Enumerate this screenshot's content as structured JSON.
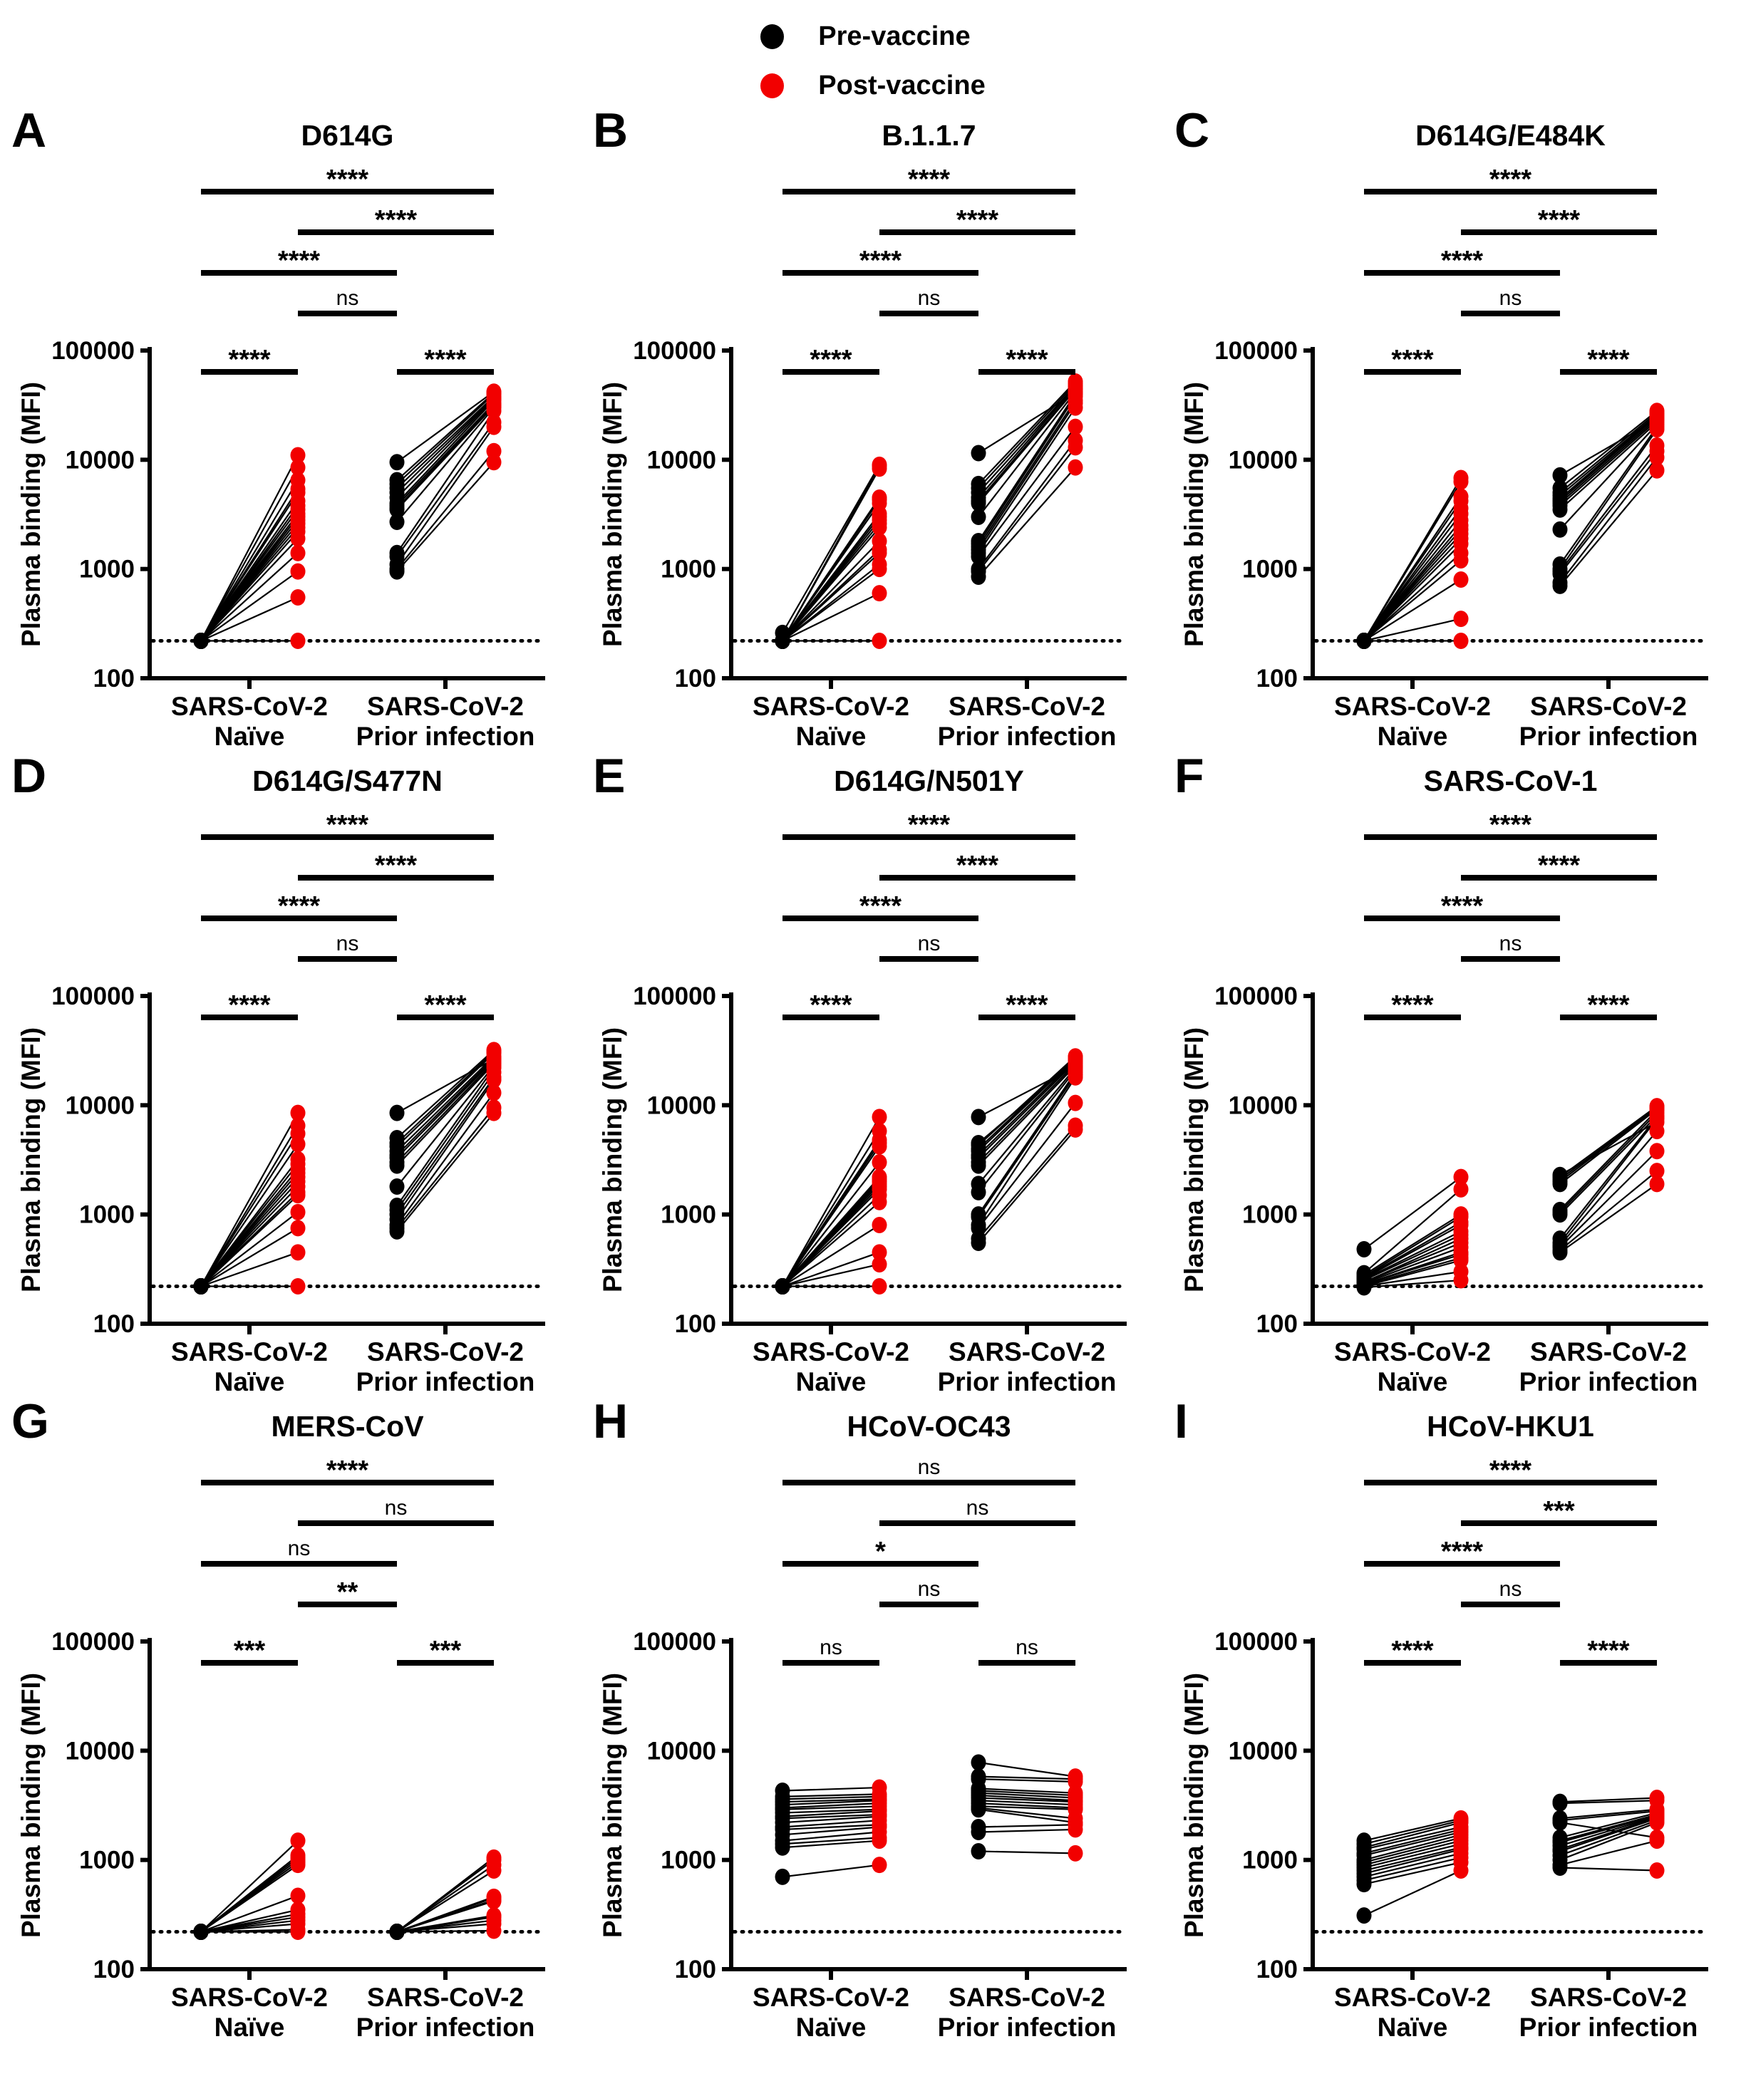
{
  "legend": {
    "items": [
      {
        "label": "Pre-vaccine",
        "color": "#000000"
      },
      {
        "label": "Post-vaccine",
        "color": "#f20000"
      }
    ]
  },
  "axes": {
    "ylabel": "Plasma binding (MFI)",
    "yticks": [
      "100",
      "1000",
      "10000",
      "100000"
    ],
    "ylim": [
      100,
      100000
    ],
    "yscale": "log",
    "baseline": 220,
    "x_groups": [
      {
        "line1": "SARS-CoV-2",
        "line2": "Naïve"
      },
      {
        "line1": "SARS-CoV-2",
        "line2": "Prior infection"
      }
    ]
  },
  "chart_data": [
    {
      "panel": "A",
      "title": "D614G",
      "type": "scatter",
      "series": {
        "naive_pre": [
          220,
          220,
          220,
          220,
          220,
          220,
          220,
          220,
          220,
          220,
          220,
          220,
          220,
          220,
          220,
          220,
          220,
          220,
          220
        ],
        "naive_post": [
          220,
          550,
          950,
          1400,
          1900,
          2200,
          2400,
          2600,
          2800,
          3000,
          3200,
          3500,
          3800,
          4200,
          5000,
          5400,
          6500,
          8500,
          11000
        ],
        "prior_pre": [
          950,
          1000,
          1100,
          1300,
          1400,
          2700,
          3500,
          3600,
          3800,
          4000,
          4500,
          5000,
          5500,
          6000,
          6500,
          9500
        ],
        "prior_post": [
          9500,
          12000,
          20000,
          22000,
          28000,
          30000,
          31000,
          32000,
          33000,
          35000,
          36000,
          37000,
          38000,
          40000,
          41000,
          42000
        ]
      },
      "significance": [
        {
          "a": "naive_pre",
          "b": "naive_post",
          "label": "****",
          "level": 0
        },
        {
          "a": "prior_pre",
          "b": "prior_post",
          "label": "****",
          "level": 0
        },
        {
          "a": "naive_post",
          "b": "prior_pre",
          "label": "ns",
          "level": 1
        },
        {
          "a": "naive_pre",
          "b": "prior_pre",
          "label": "****",
          "level": 2
        },
        {
          "a": "naive_post",
          "b": "prior_post",
          "label": "****",
          "level": 3
        },
        {
          "a": "naive_pre",
          "b": "prior_post",
          "label": "****",
          "level": 4
        }
      ]
    },
    {
      "panel": "B",
      "title": "B.1.1.7",
      "type": "scatter",
      "series": {
        "naive_pre": [
          220,
          220,
          220,
          220,
          220,
          220,
          220,
          220,
          220,
          220,
          220,
          220,
          220,
          220,
          220,
          220,
          220,
          260
        ],
        "naive_post": [
          220,
          600,
          1000,
          1100,
          1400,
          1500,
          1800,
          2400,
          2600,
          2800,
          3000,
          3200,
          4000,
          4300,
          4500,
          8300,
          8800,
          9000
        ],
        "prior_pre": [
          850,
          950,
          1000,
          1300,
          1400,
          1500,
          1600,
          1700,
          1800,
          3000,
          4000,
          4200,
          4500,
          5000,
          5500,
          6000,
          11500
        ],
        "prior_post": [
          8500,
          13000,
          15000,
          20000,
          30000,
          33000,
          35000,
          38000,
          40000,
          42000,
          44000,
          45000,
          47000,
          48000,
          50000,
          52000,
          41000
        ]
      },
      "significance": [
        {
          "a": "naive_pre",
          "b": "naive_post",
          "label": "****",
          "level": 0
        },
        {
          "a": "prior_pre",
          "b": "prior_post",
          "label": "****",
          "level": 0
        },
        {
          "a": "naive_post",
          "b": "prior_pre",
          "label": "ns",
          "level": 1
        },
        {
          "a": "naive_pre",
          "b": "prior_pre",
          "label": "****",
          "level": 2
        },
        {
          "a": "naive_post",
          "b": "prior_post",
          "label": "****",
          "level": 3
        },
        {
          "a": "naive_pre",
          "b": "prior_post",
          "label": "****",
          "level": 4
        }
      ]
    },
    {
      "panel": "C",
      "title": "D614G/E484K",
      "type": "scatter",
      "series": {
        "naive_pre": [
          220,
          220,
          220,
          220,
          220,
          220,
          220,
          220,
          220,
          220,
          220,
          220,
          220,
          220,
          220,
          220,
          220
        ],
        "naive_post": [
          220,
          350,
          800,
          1200,
          1400,
          1700,
          1900,
          2100,
          2300,
          2500,
          2800,
          3200,
          3600,
          4200,
          4600,
          6300,
          6800
        ],
        "prior_pre": [
          700,
          750,
          900,
          950,
          1000,
          1100,
          2300,
          3500,
          3800,
          4000,
          4200,
          4400,
          4700,
          5000,
          5500,
          7200
        ],
        "prior_post": [
          8000,
          10500,
          12000,
          13500,
          19000,
          20000,
          21000,
          22000,
          23000,
          24000,
          25000,
          25500,
          26000,
          27000,
          28000,
          23500
        ]
      },
      "significance": [
        {
          "a": "naive_pre",
          "b": "naive_post",
          "label": "****",
          "level": 0
        },
        {
          "a": "prior_pre",
          "b": "prior_post",
          "label": "****",
          "level": 0
        },
        {
          "a": "naive_post",
          "b": "prior_pre",
          "label": "ns",
          "level": 1
        },
        {
          "a": "naive_pre",
          "b": "prior_pre",
          "label": "****",
          "level": 2
        },
        {
          "a": "naive_post",
          "b": "prior_post",
          "label": "****",
          "level": 3
        },
        {
          "a": "naive_pre",
          "b": "prior_post",
          "label": "****",
          "level": 4
        }
      ]
    },
    {
      "panel": "D",
      "title": "D614G/S477N",
      "type": "scatter",
      "series": {
        "naive_pre": [
          220,
          220,
          220,
          220,
          220,
          220,
          220,
          220,
          220,
          220,
          220,
          220,
          220,
          220,
          220,
          220,
          220
        ],
        "naive_post": [
          220,
          450,
          750,
          1050,
          1500,
          1600,
          1800,
          2000,
          2200,
          2400,
          2600,
          2900,
          3200,
          4400,
          5500,
          6500,
          8500
        ],
        "prior_pre": [
          700,
          750,
          800,
          900,
          1000,
          1100,
          1200,
          1800,
          2800,
          3000,
          3300,
          3500,
          3800,
          4200,
          4500,
          5000,
          8500
        ],
        "prior_post": [
          8500,
          9500,
          13000,
          17000,
          18000,
          20000,
          22000,
          23000,
          24000,
          25000,
          26000,
          27000,
          28000,
          30000,
          31000,
          32000,
          26500
        ]
      },
      "significance": [
        {
          "a": "naive_pre",
          "b": "naive_post",
          "label": "****",
          "level": 0
        },
        {
          "a": "prior_pre",
          "b": "prior_post",
          "label": "****",
          "level": 0
        },
        {
          "a": "naive_post",
          "b": "prior_pre",
          "label": "ns",
          "level": 1
        },
        {
          "a": "naive_pre",
          "b": "prior_pre",
          "label": "****",
          "level": 2
        },
        {
          "a": "naive_post",
          "b": "prior_post",
          "label": "****",
          "level": 3
        },
        {
          "a": "naive_pre",
          "b": "prior_post",
          "label": "****",
          "level": 4
        }
      ]
    },
    {
      "panel": "E",
      "title": "D614G/N501Y",
      "type": "scatter",
      "series": {
        "naive_pre": [
          220,
          220,
          220,
          220,
          220,
          220,
          220,
          220,
          220,
          220,
          220,
          220,
          220,
          220,
          220,
          220,
          220,
          220
        ],
        "naive_post": [
          220,
          350,
          450,
          800,
          1300,
          1500,
          1700,
          1800,
          1900,
          2000,
          2100,
          2200,
          3000,
          4200,
          4500,
          4800,
          5800,
          7800
        ],
        "prior_pre": [
          550,
          600,
          750,
          800,
          950,
          1000,
          1600,
          1900,
          2800,
          3000,
          3300,
          3500,
          3800,
          4000,
          4300,
          4500,
          7800
        ],
        "prior_post": [
          6000,
          6500,
          10500,
          18000,
          19000,
          20000,
          21000,
          22000,
          23000,
          24000,
          25000,
          26000,
          27000,
          27500,
          28000,
          25500,
          22500
        ]
      },
      "significance": [
        {
          "a": "naive_pre",
          "b": "naive_post",
          "label": "****",
          "level": 0
        },
        {
          "a": "prior_pre",
          "b": "prior_post",
          "label": "****",
          "level": 0
        },
        {
          "a": "naive_post",
          "b": "prior_pre",
          "label": "ns",
          "level": 1
        },
        {
          "a": "naive_pre",
          "b": "prior_pre",
          "label": "****",
          "level": 2
        },
        {
          "a": "naive_post",
          "b": "prior_post",
          "label": "****",
          "level": 3
        },
        {
          "a": "naive_pre",
          "b": "prior_post",
          "label": "****",
          "level": 4
        }
      ]
    },
    {
      "panel": "F",
      "title": "SARS-CoV-1",
      "type": "scatter",
      "series": {
        "naive_pre": [
          215,
          220,
          220,
          225,
          230,
          230,
          235,
          240,
          240,
          250,
          255,
          260,
          265,
          270,
          280,
          290,
          480
        ],
        "naive_post": [
          250,
          300,
          380,
          400,
          430,
          450,
          500,
          550,
          600,
          650,
          700,
          800,
          850,
          950,
          1000,
          1700,
          2200
        ],
        "prior_pre": [
          450,
          470,
          500,
          520,
          550,
          600,
          1000,
          1050,
          1100,
          1900,
          2000,
          2100,
          2200,
          2300
        ],
        "prior_post": [
          1900,
          2500,
          3800,
          5800,
          7500,
          7800,
          8000,
          8500,
          9000,
          9200,
          9500,
          9600,
          9800,
          7000
        ]
      },
      "significance": [
        {
          "a": "naive_pre",
          "b": "naive_post",
          "label": "****",
          "level": 0
        },
        {
          "a": "prior_pre",
          "b": "prior_post",
          "label": "****",
          "level": 0
        },
        {
          "a": "naive_post",
          "b": "prior_pre",
          "label": "ns",
          "level": 1
        },
        {
          "a": "naive_pre",
          "b": "prior_pre",
          "label": "****",
          "level": 2
        },
        {
          "a": "naive_post",
          "b": "prior_post",
          "label": "****",
          "level": 3
        },
        {
          "a": "naive_pre",
          "b": "prior_post",
          "label": "****",
          "level": 4
        }
      ]
    },
    {
      "panel": "G",
      "title": "MERS-CoV",
      "type": "scatter",
      "series": {
        "naive_pre": [
          220,
          220,
          220,
          220,
          220,
          220,
          220,
          220,
          220,
          220,
          220,
          220,
          220,
          220
        ],
        "naive_post": [
          220,
          230,
          260,
          280,
          300,
          320,
          350,
          470,
          900,
          950,
          1000,
          1050,
          1100,
          1500
        ],
        "prior_pre": [
          220,
          220,
          220,
          220,
          220,
          220,
          220,
          220,
          220,
          220,
          220,
          220,
          220
        ],
        "prior_post": [
          225,
          260,
          280,
          300,
          310,
          420,
          430,
          450,
          460,
          800,
          900,
          1000,
          1050
        ]
      },
      "significance": [
        {
          "a": "naive_pre",
          "b": "naive_post",
          "label": "***",
          "level": 0
        },
        {
          "a": "prior_pre",
          "b": "prior_post",
          "label": "***",
          "level": 0
        },
        {
          "a": "naive_post",
          "b": "prior_pre",
          "label": "**",
          "level": 1
        },
        {
          "a": "naive_pre",
          "b": "prior_pre",
          "label": "ns",
          "level": 2
        },
        {
          "a": "naive_post",
          "b": "prior_post",
          "label": "ns",
          "level": 3
        },
        {
          "a": "naive_pre",
          "b": "prior_post",
          "label": "****",
          "level": 4
        }
      ]
    },
    {
      "panel": "H",
      "title": "HCoV-OC43",
      "type": "scatter",
      "series": {
        "naive_pre": [
          700,
          1300,
          1400,
          1500,
          1700,
          1900,
          2000,
          2200,
          2400,
          2500,
          2700,
          2900,
          3000,
          3200,
          3400,
          3600,
          3800,
          4300
        ],
        "naive_post": [
          900,
          1500,
          1600,
          1800,
          2000,
          2100,
          2300,
          2500,
          2600,
          2800,
          2900,
          3100,
          3300,
          3500,
          3600,
          3800,
          4000,
          4600
        ],
        "prior_pre": [
          1200,
          1800,
          2000,
          2900,
          3000,
          3100,
          3300,
          3500,
          3700,
          3900,
          4100,
          4300,
          4500,
          5500,
          5800,
          7800
        ],
        "prior_post": [
          1150,
          1900,
          2100,
          2200,
          2400,
          2900,
          3000,
          3200,
          3400,
          3500,
          3700,
          3900,
          4100,
          5200,
          5500,
          5800
        ]
      },
      "significance": [
        {
          "a": "naive_pre",
          "b": "naive_post",
          "label": "ns",
          "level": 0
        },
        {
          "a": "prior_pre",
          "b": "prior_post",
          "label": "ns",
          "level": 0
        },
        {
          "a": "naive_post",
          "b": "prior_pre",
          "label": "ns",
          "level": 1
        },
        {
          "a": "naive_pre",
          "b": "prior_pre",
          "label": "*",
          "level": 2
        },
        {
          "a": "naive_post",
          "b": "prior_post",
          "label": "ns",
          "level": 3
        },
        {
          "a": "naive_pre",
          "b": "prior_post",
          "label": "ns",
          "level": 4
        }
      ]
    },
    {
      "panel": "I",
      "title": "HCoV-HKU1",
      "type": "scatter",
      "series": {
        "naive_pre": [
          310,
          600,
          650,
          700,
          750,
          800,
          850,
          900,
          950,
          1000,
          1100,
          1150,
          1250,
          1300,
          1400,
          1500
        ],
        "naive_post": [
          800,
          950,
          1050,
          1150,
          1250,
          1300,
          1400,
          1500,
          1600,
          1700,
          1800,
          1900,
          2000,
          2200,
          2300,
          2400
        ],
        "prior_pre": [
          850,
          900,
          1000,
          1100,
          1200,
          1250,
          1350,
          1450,
          1500,
          1600,
          2200,
          2300,
          2400,
          3300,
          3400
        ],
        "prior_post": [
          800,
          1500,
          2200,
          2300,
          2400,
          2450,
          2500,
          2550,
          2600,
          2700,
          1600,
          2800,
          2900,
          3500,
          3700
        ]
      },
      "significance": [
        {
          "a": "naive_pre",
          "b": "naive_post",
          "label": "****",
          "level": 0
        },
        {
          "a": "prior_pre",
          "b": "prior_post",
          "label": "****",
          "level": 0
        },
        {
          "a": "naive_post",
          "b": "prior_pre",
          "label": "ns",
          "level": 1
        },
        {
          "a": "naive_pre",
          "b": "prior_pre",
          "label": "****",
          "level": 2
        },
        {
          "a": "naive_post",
          "b": "prior_post",
          "label": "***",
          "level": 3
        },
        {
          "a": "naive_pre",
          "b": "prior_post",
          "label": "****",
          "level": 4
        }
      ]
    }
  ]
}
